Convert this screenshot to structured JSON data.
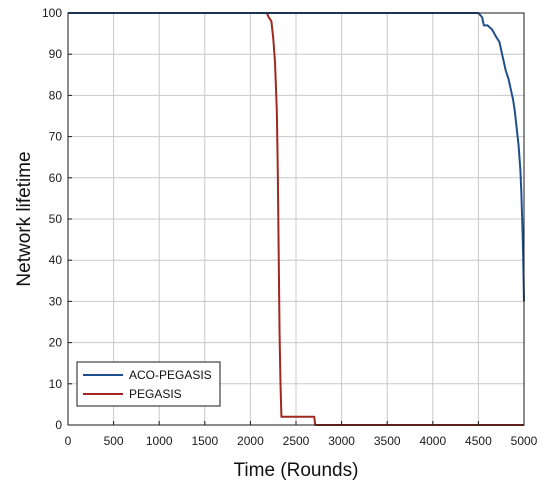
{
  "chart_data": {
    "type": "line",
    "title": "",
    "xlabel": "Time (Rounds)",
    "ylabel": "Network lifetime",
    "xlim": [
      0,
      5000
    ],
    "ylim": [
      0,
      100
    ],
    "xticks": [
      0,
      500,
      1000,
      1500,
      2000,
      2500,
      3000,
      3500,
      4000,
      4500,
      5000
    ],
    "yticks": [
      0,
      10,
      20,
      30,
      40,
      50,
      60,
      70,
      80,
      90,
      100
    ],
    "grid": true,
    "legend_position": "bottom-left",
    "series": [
      {
        "name": "ACO-PEGASIS",
        "color": "#1f4e8c",
        "x": [
          0,
          4500,
          4540,
          4560,
          4600,
          4650,
          4700,
          4730,
          4760,
          4780,
          4800,
          4830,
          4860,
          4880,
          4900,
          4920,
          4940,
          4960,
          4970,
          4980,
          4990,
          5000
        ],
        "y": [
          100,
          100,
          99,
          97,
          97,
          96,
          94,
          93,
          90,
          88,
          86,
          84,
          81,
          79,
          76,
          72,
          68,
          62,
          57,
          50,
          42,
          30
        ]
      },
      {
        "name": "PEGASIS",
        "color": "#a0281e",
        "x": [
          0,
          2180,
          2200,
          2230,
          2250,
          2270,
          2290,
          2300,
          2310,
          2320,
          2330,
          2340,
          2350,
          2700,
          2710,
          5000
        ],
        "y": [
          100,
          100,
          99,
          98,
          94,
          88,
          76,
          62,
          42,
          22,
          10,
          2,
          2,
          2,
          0,
          0
        ]
      }
    ]
  }
}
